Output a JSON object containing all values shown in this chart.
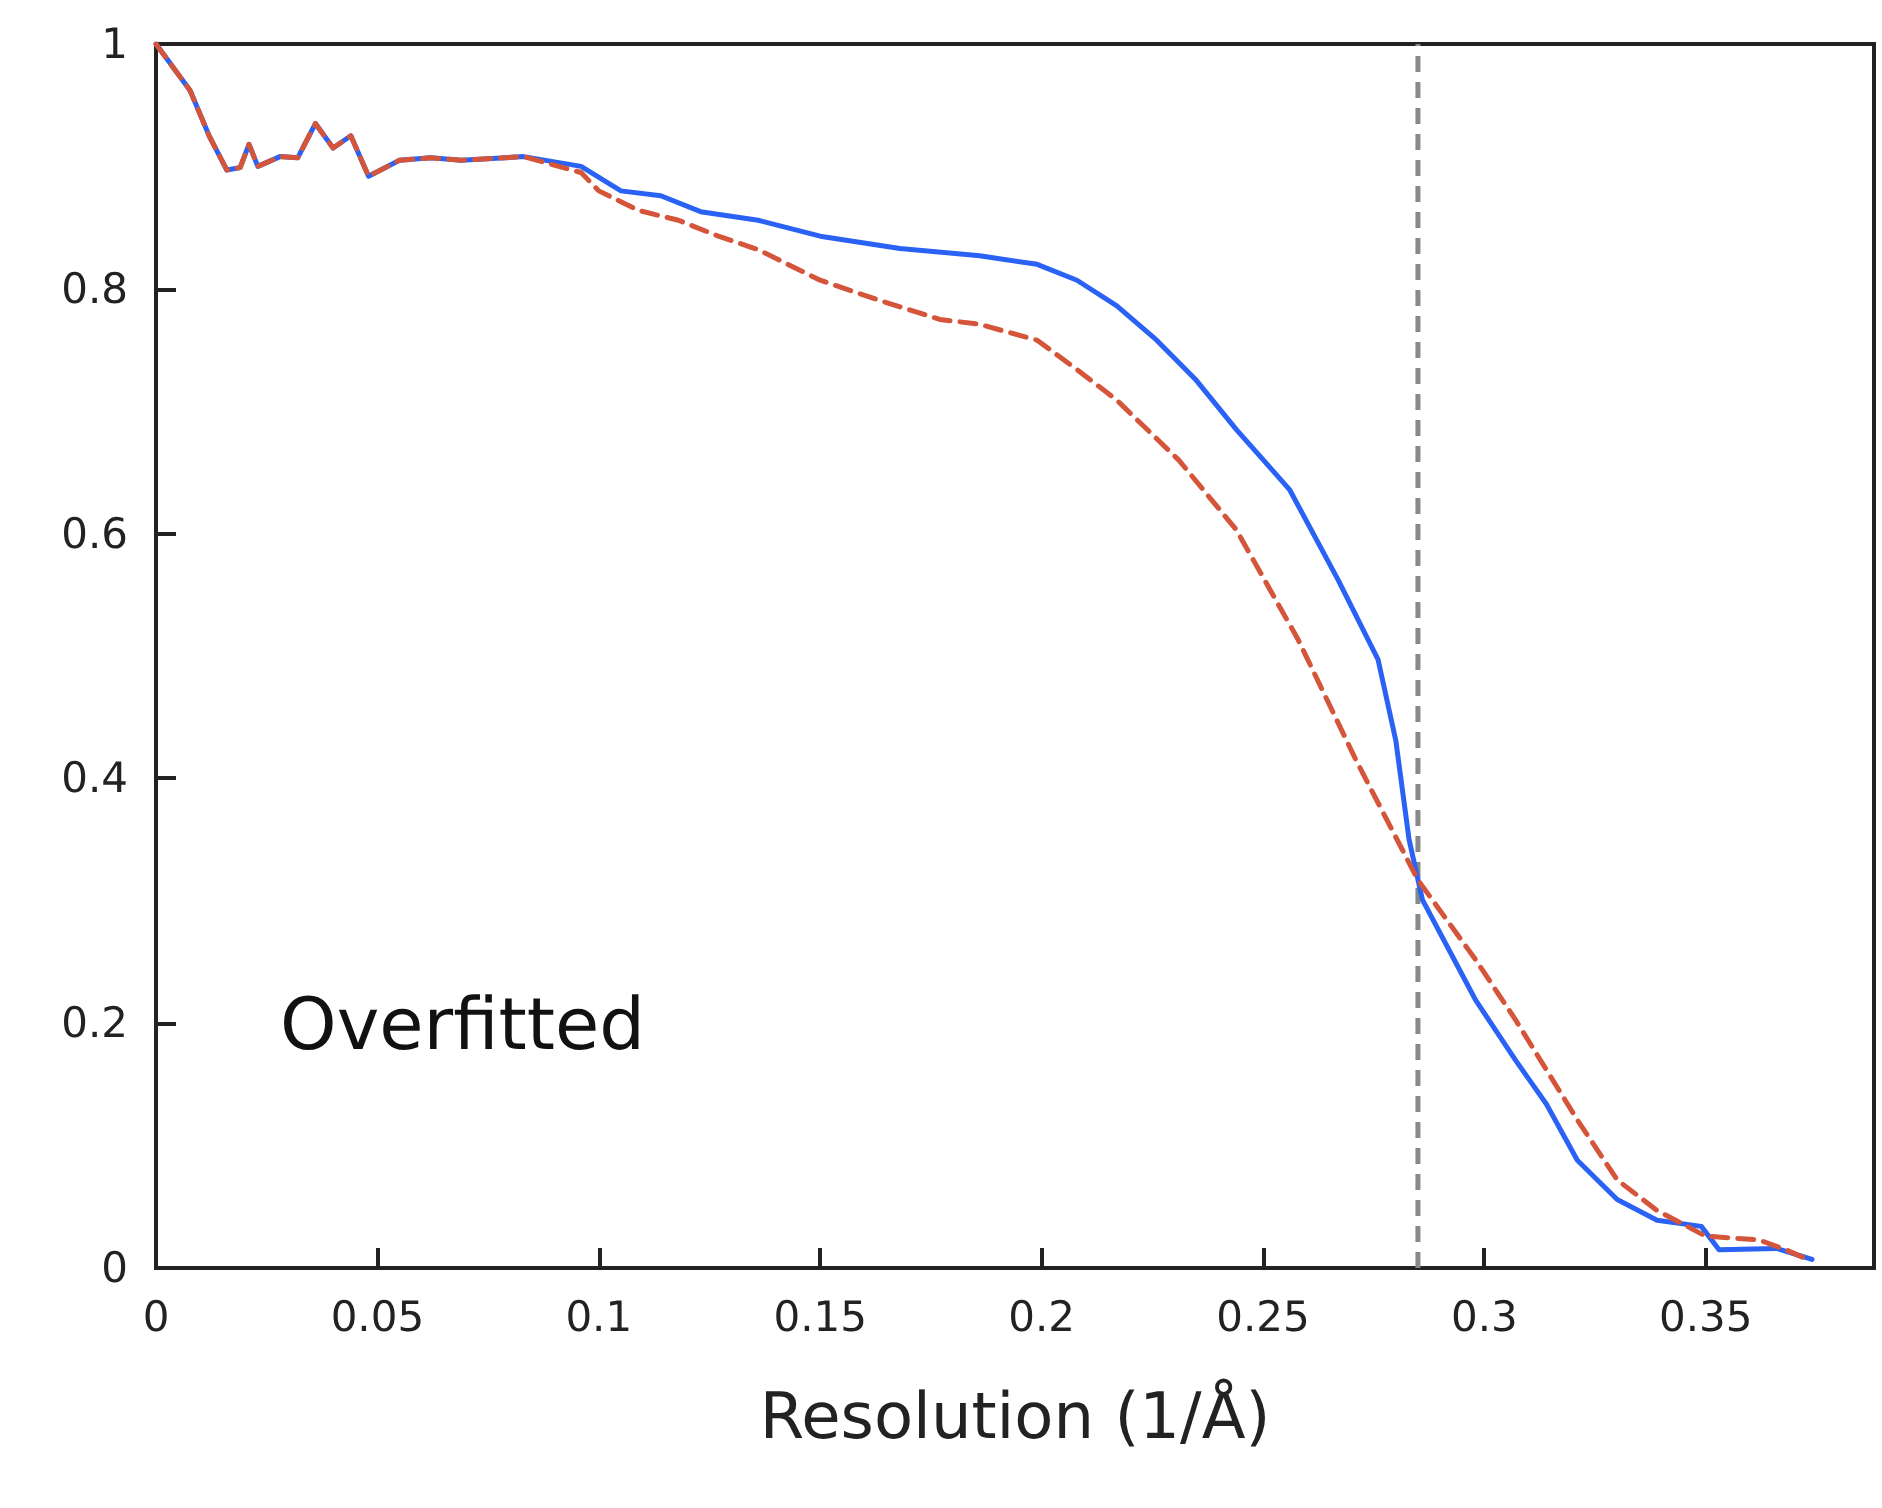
{
  "chart_data": {
    "type": "line",
    "xlabel": "Resolution (1/Å)",
    "annotations": [
      "Overfitted"
    ],
    "xlim": [
      0,
      0.388
    ],
    "xticks": [
      0,
      0.05,
      0.1,
      0.15,
      0.2,
      0.25,
      0.3,
      0.35
    ],
    "ylim": [
      0,
      1
    ],
    "yticks": [
      0,
      0.2,
      0.4,
      0.6,
      0.8,
      1
    ],
    "grid": false,
    "marker": "none",
    "ref_lines": [
      {
        "axis": "x",
        "value": 0.285,
        "color": "#888888",
        "line_style": "dashed"
      }
    ],
    "series": [
      {
        "color": "#2a62f5",
        "line_style": "solid",
        "x": [
          0,
          0.0077,
          0.012,
          0.016,
          0.019,
          0.021,
          0.023,
          0.028,
          0.032,
          0.036,
          0.04,
          0.044,
          0.048,
          0.055,
          0.062,
          0.069,
          0.083,
          0.096,
          0.105,
          0.114,
          0.123,
          0.136,
          0.15,
          0.168,
          0.186,
          0.199,
          0.208,
          0.217,
          0.226,
          0.235,
          0.244,
          0.256,
          0.267,
          0.276,
          0.28,
          0.283,
          0.286,
          0.292,
          0.298,
          0.307,
          0.314,
          0.321,
          0.33,
          0.339,
          0.349,
          0.353,
          0.366,
          0.374
        ],
        "values": [
          1,
          0.962,
          0.925,
          0.897,
          0.899,
          0.918,
          0.9,
          0.908,
          0.907,
          0.935,
          0.915,
          0.925,
          0.892,
          0.905,
          0.907,
          0.905,
          0.908,
          0.9,
          0.88,
          0.876,
          0.863,
          0.856,
          0.843,
          0.833,
          0.827,
          0.82,
          0.807,
          0.786,
          0.758,
          0.725,
          0.685,
          0.636,
          0.562,
          0.497,
          0.431,
          0.35,
          0.301,
          0.26,
          0.219,
          0.17,
          0.134,
          0.088,
          0.056,
          0.039,
          0.034,
          0.015,
          0.016,
          0.007
        ]
      },
      {
        "color": "#d4553a",
        "line_style": "dashed",
        "x": [
          0,
          0.0077,
          0.012,
          0.016,
          0.019,
          0.021,
          0.023,
          0.028,
          0.032,
          0.036,
          0.04,
          0.044,
          0.048,
          0.055,
          0.062,
          0.069,
          0.083,
          0.096,
          0.1,
          0.109,
          0.118,
          0.127,
          0.136,
          0.15,
          0.163,
          0.177,
          0.186,
          0.199,
          0.208,
          0.217,
          0.231,
          0.244,
          0.258,
          0.271,
          0.285,
          0.298,
          0.307,
          0.321,
          0.33,
          0.339,
          0.35,
          0.362,
          0.368,
          0.373
        ],
        "values": [
          1,
          0.962,
          0.925,
          0.897,
          0.899,
          0.918,
          0.9,
          0.908,
          0.907,
          0.935,
          0.915,
          0.925,
          0.892,
          0.905,
          0.907,
          0.905,
          0.908,
          0.895,
          0.88,
          0.864,
          0.856,
          0.843,
          0.832,
          0.807,
          0.791,
          0.775,
          0.771,
          0.758,
          0.734,
          0.709,
          0.66,
          0.603,
          0.513,
          0.415,
          0.317,
          0.252,
          0.203,
          0.121,
          0.072,
          0.047,
          0.026,
          0.023,
          0.015,
          0.007
        ]
      }
    ]
  }
}
